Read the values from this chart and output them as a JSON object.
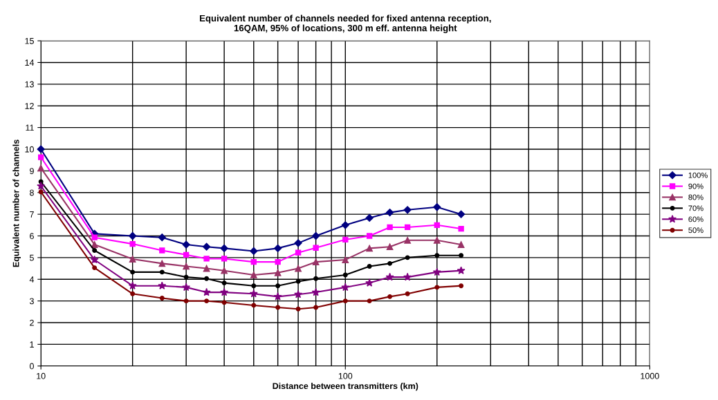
{
  "chart_data": {
    "type": "line",
    "title": "Equivalent number of channels needed for fixed antenna reception,\n16QAM, 95% of locations, 300 m eff. antenna height",
    "xlabel": "Distance between transmitters (km)",
    "ylabel": "Equivalent number of channels",
    "x": [
      10,
      15,
      20,
      25,
      30,
      35,
      40,
      50,
      60,
      70,
      80,
      100,
      120,
      140,
      160,
      200,
      240
    ],
    "series": [
      {
        "name": "100%",
        "color": "#000080",
        "marker": "diamond",
        "values": [
          10.0,
          6.1,
          6.0,
          5.93,
          5.6,
          5.5,
          5.43,
          5.3,
          5.43,
          5.67,
          6.0,
          6.5,
          6.83,
          7.08,
          7.2,
          7.33,
          7.0
        ]
      },
      {
        "name": "90%",
        "color": "#ff00ff",
        "marker": "square",
        "values": [
          9.63,
          5.93,
          5.63,
          5.33,
          5.13,
          4.95,
          4.95,
          4.8,
          4.8,
          5.23,
          5.45,
          5.83,
          6.0,
          6.4,
          6.4,
          6.5,
          6.33
        ]
      },
      {
        "name": "80%",
        "color": "#993366",
        "marker": "triangle",
        "values": [
          9.13,
          5.6,
          4.93,
          4.73,
          4.6,
          4.5,
          4.4,
          4.2,
          4.3,
          4.5,
          4.8,
          4.9,
          5.43,
          5.5,
          5.8,
          5.8,
          5.6
        ]
      },
      {
        "name": "70%",
        "color": "#000000",
        "marker": "circle",
        "values": [
          8.5,
          5.33,
          4.33,
          4.33,
          4.1,
          4.03,
          3.83,
          3.7,
          3.7,
          3.9,
          4.03,
          4.2,
          4.6,
          4.73,
          5.0,
          5.1,
          5.1
        ]
      },
      {
        "name": "60%",
        "color": "#800080",
        "marker": "star",
        "values": [
          8.3,
          4.9,
          3.7,
          3.7,
          3.63,
          3.4,
          3.4,
          3.33,
          3.2,
          3.3,
          3.4,
          3.63,
          3.83,
          4.1,
          4.1,
          4.33,
          4.4
        ]
      },
      {
        "name": "50%",
        "color": "#800000",
        "marker": "circle",
        "values": [
          8.03,
          4.53,
          3.33,
          3.13,
          3.0,
          3.0,
          2.93,
          2.8,
          2.7,
          2.63,
          2.7,
          3.0,
          3.0,
          3.2,
          3.33,
          3.63,
          3.7
        ]
      }
    ],
    "log": "x",
    "xlim": [
      10,
      1000
    ],
    "xticks": [
      10,
      100,
      1000
    ],
    "ylim": [
      0,
      15
    ],
    "yticks": [
      0,
      1,
      2,
      3,
      4,
      5,
      6,
      7,
      8,
      9,
      10,
      11,
      12,
      13,
      14,
      15
    ],
    "grid": true,
    "legend": "right",
    "line_style": "solid"
  }
}
